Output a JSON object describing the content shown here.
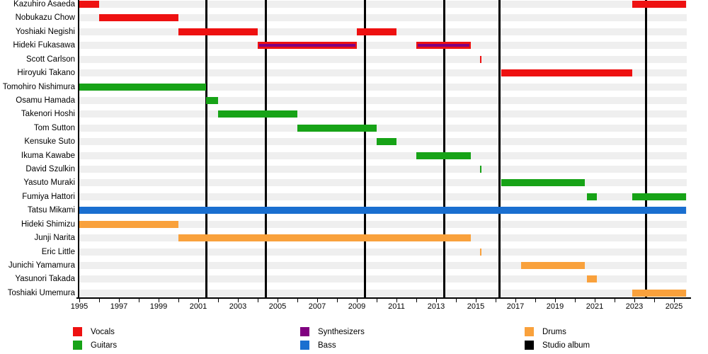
{
  "chart_data": {
    "type": "timeline",
    "description": "Band members timeline (Gantt-style) with roles by color and studio album release lines",
    "x_axis": {
      "min_year": 1995,
      "max_year": 2025.6,
      "tick_every_years": 1,
      "label_every_years": 2,
      "tick_labels": [
        "1995",
        "1997",
        "1999",
        "2001",
        "2003",
        "2005",
        "2007",
        "2009",
        "2011",
        "2013",
        "2015",
        "2017",
        "2019",
        "2021",
        "2023",
        "2025"
      ]
    },
    "roles": {
      "vocals": {
        "label": "Vocals",
        "color": "#ee1111"
      },
      "guitars": {
        "label": "Guitars",
        "color": "#17a317"
      },
      "synthesizers": {
        "label": "Synthesizers",
        "color": "#800080"
      },
      "bass": {
        "label": "Bass",
        "color": "#1a6fd0"
      },
      "drums": {
        "label": "Drums",
        "color": "#f9a13c"
      },
      "studio_album": {
        "label": "Studio album",
        "color": "#000000"
      }
    },
    "members": [
      {
        "name": "Kazuhiro Asaeda",
        "role": "vocals",
        "segments": [
          [
            1995.0,
            1996.0
          ],
          [
            2022.9,
            2025.6
          ]
        ]
      },
      {
        "name": "Nobukazu Chow",
        "role": "vocals",
        "segments": [
          [
            1996.0,
            2000.0
          ]
        ]
      },
      {
        "name": "Yoshiaki Negishi",
        "role": "vocals",
        "segments": [
          [
            2000.0,
            2004.0
          ],
          [
            2009.0,
            2011.0
          ]
        ]
      },
      {
        "name": "Hideki Fukasawa",
        "role": "vocals",
        "overlay_role": "synthesizers",
        "segments": [
          [
            2004.0,
            2009.0
          ],
          [
            2012.0,
            2014.75
          ]
        ]
      },
      {
        "name": "Scott Carlson",
        "role": "vocals",
        "segments": [
          [
            2015.2,
            2015.3
          ]
        ]
      },
      {
        "name": "Hiroyuki Takano",
        "role": "vocals",
        "segments": [
          [
            2016.3,
            2022.9
          ]
        ]
      },
      {
        "name": "Tomohiro Nishimura",
        "role": "guitars",
        "segments": [
          [
            1995.0,
            2001.4
          ]
        ]
      },
      {
        "name": "Osamu Hamada",
        "role": "guitars",
        "segments": [
          [
            2001.4,
            2002.0
          ]
        ]
      },
      {
        "name": "Takenori Hoshi",
        "role": "guitars",
        "segments": [
          [
            2002.0,
            2006.0
          ]
        ]
      },
      {
        "name": "Tom Sutton",
        "role": "guitars",
        "segments": [
          [
            2006.0,
            2010.0
          ]
        ]
      },
      {
        "name": "Kensuke Suto",
        "role": "guitars",
        "segments": [
          [
            2010.0,
            2011.0
          ]
        ]
      },
      {
        "name": "Ikuma Kawabe",
        "role": "guitars",
        "segments": [
          [
            2012.0,
            2014.75
          ]
        ]
      },
      {
        "name": "David Szulkin",
        "role": "guitars",
        "segments": [
          [
            2015.2,
            2015.3
          ]
        ]
      },
      {
        "name": "Yasuto Muraki",
        "role": "guitars",
        "segments": [
          [
            2016.3,
            2020.5
          ]
        ]
      },
      {
        "name": "Fumiya Hattori",
        "role": "guitars",
        "segments": [
          [
            2020.6,
            2021.1
          ],
          [
            2022.9,
            2025.6
          ]
        ]
      },
      {
        "name": "Tatsu Mikami",
        "role": "bass",
        "segments": [
          [
            1995.0,
            2025.6
          ]
        ]
      },
      {
        "name": "Hideki Shimizu",
        "role": "drums",
        "segments": [
          [
            1995.0,
            2000.0
          ]
        ]
      },
      {
        "name": "Junji Narita",
        "role": "drums",
        "segments": [
          [
            2000.0,
            2014.75
          ]
        ]
      },
      {
        "name": "Eric Little",
        "role": "drums",
        "segments": [
          [
            2015.2,
            2015.3
          ]
        ]
      },
      {
        "name": "Junichi Yamamura",
        "role": "drums",
        "segments": [
          [
            2017.3,
            2020.5
          ]
        ]
      },
      {
        "name": "Yasunori Takada",
        "role": "drums",
        "segments": [
          [
            2020.6,
            2021.1
          ]
        ]
      },
      {
        "name": "Toshiaki Umemura",
        "role": "drums",
        "segments": [
          [
            2022.9,
            2025.6
          ]
        ]
      }
    ],
    "album_lines_years": [
      2001.4,
      2004.4,
      2009.4,
      2013.4,
      2016.2,
      2023.6
    ],
    "legend": [
      {
        "label": "Vocals",
        "role": "vocals",
        "col": 0,
        "row": 0
      },
      {
        "label": "Guitars",
        "role": "guitars",
        "col": 0,
        "row": 1
      },
      {
        "label": "Synthesizers",
        "role": "synthesizers",
        "col": 1,
        "row": 0
      },
      {
        "label": "Bass",
        "role": "bass",
        "col": 1,
        "row": 1
      },
      {
        "label": "Drums",
        "role": "drums",
        "col": 2,
        "row": 0
      },
      {
        "label": "Studio album",
        "role": "studio_album",
        "col": 2,
        "row": 1
      }
    ]
  }
}
